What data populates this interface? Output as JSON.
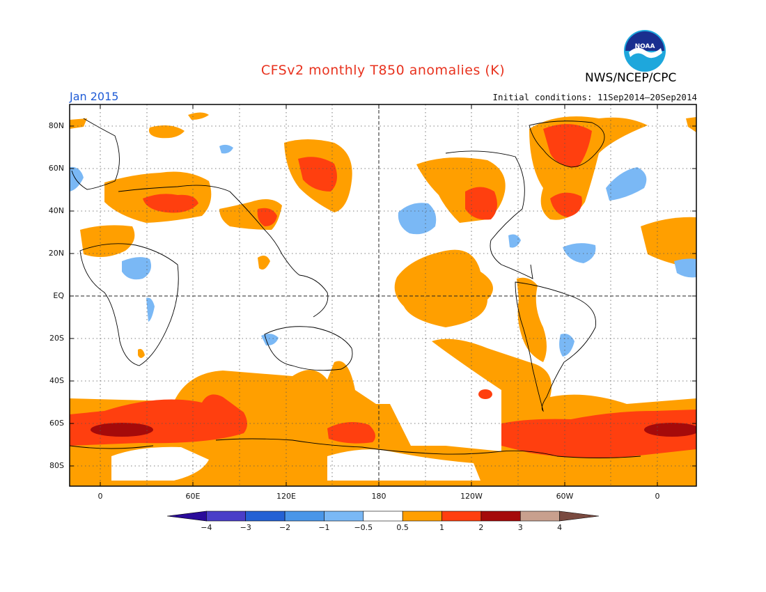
{
  "header": {
    "title": "CFSv2 monthly T850 anomalies (K)",
    "organization": "NWS/NCEP/CPC",
    "forecast_month": "Jan 2015",
    "initial_conditions": "Initial conditions: 11Sep2014–20Sep2014",
    "logo_text": "NOAA"
  },
  "map": {
    "lat_labels": [
      "80N",
      "60N",
      "40N",
      "20N",
      "EQ",
      "20S",
      "40S",
      "60S",
      "80S"
    ],
    "lon_labels": [
      "0",
      "60E",
      "120E",
      "180",
      "120W",
      "60W",
      "0"
    ],
    "colorbar": {
      "labels": [
        "−4",
        "−3",
        "−2",
        "−1",
        "−0.5",
        "0.5",
        "1",
        "2",
        "3",
        "4"
      ],
      "colors": [
        "#2a0b9a",
        "#4a3ec8",
        "#2461d4",
        "#4a96e8",
        "#7ab8f5",
        "#ffffff",
        "#ff9f00",
        "#ff3f0f",
        "#a50a0a",
        "#c8a08e",
        "#7a4a40"
      ]
    },
    "anomaly_colors": {
      "weak_warm": "#ff9f00",
      "warm": "#ff3f0f",
      "strong_warm": "#a50a0a",
      "weak_cold": "#7ab8f5"
    }
  }
}
